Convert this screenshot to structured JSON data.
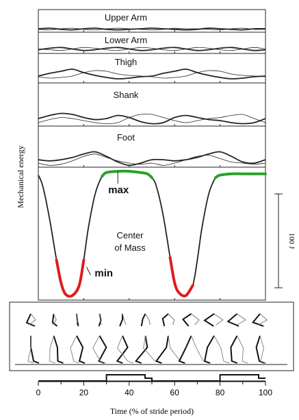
{
  "y_label": "Mechanical energy",
  "x_label": "Time (% of stride period)",
  "scale_bar_label": "100 J",
  "chart_data": {
    "type": "line",
    "xlabel": "Time (% of stride period)",
    "ylabel": "Mechanical energy",
    "xlim": [
      0,
      100
    ],
    "x_ticks": [
      0,
      20,
      40,
      60,
      80,
      100
    ],
    "grid": false,
    "panels": [
      {
        "name": "Upper Arm",
        "x": [
          0,
          5,
          10,
          15,
          20,
          25,
          30,
          35,
          40,
          45,
          50,
          55,
          60,
          65,
          70,
          75,
          80,
          85,
          90,
          95,
          100
        ],
        "series": [
          {
            "style": "thick",
            "values": [
              0.5,
              0.6,
              0.4,
              0.3,
              0.5,
              0.6,
              0.4,
              0.3,
              0.4,
              0.5,
              0.6,
              0.5,
              0.4,
              0.3,
              0.4,
              0.6,
              0.5,
              0.4,
              0.3,
              0.5,
              0.5
            ]
          },
          {
            "style": "thin",
            "values": [
              0.4,
              0.3,
              0.5,
              0.6,
              0.4,
              0.3,
              0.5,
              0.6,
              0.5,
              0.4,
              0.3,
              0.4,
              0.6,
              0.5,
              0.5,
              0.4,
              0.3,
              0.5,
              0.6,
              0.4,
              0.4
            ]
          }
        ]
      },
      {
        "name": "Lower Arm",
        "x": [
          0,
          5,
          10,
          15,
          20,
          25,
          30,
          35,
          40,
          45,
          50,
          55,
          60,
          65,
          70,
          75,
          80,
          85,
          90,
          95,
          100
        ],
        "series": [
          {
            "style": "thick",
            "values": [
              0.4,
              0.6,
              0.7,
              0.5,
              0.3,
              0.4,
              0.6,
              0.7,
              0.5,
              0.3,
              0.4,
              0.6,
              0.7,
              0.5,
              0.3,
              0.4,
              0.6,
              0.7,
              0.5,
              0.3,
              0.4
            ]
          },
          {
            "style": "thin",
            "values": [
              0.5,
              0.4,
              0.3,
              0.5,
              0.7,
              0.6,
              0.4,
              0.3,
              0.5,
              0.7,
              0.6,
              0.4,
              0.3,
              0.5,
              0.7,
              0.6,
              0.4,
              0.3,
              0.5,
              0.7,
              0.5
            ]
          }
        ]
      },
      {
        "name": "Thigh",
        "x": [
          0,
          5,
          10,
          15,
          20,
          25,
          30,
          35,
          40,
          45,
          50,
          55,
          60,
          65,
          70,
          75,
          80,
          85,
          90,
          95,
          100
        ],
        "series": [
          {
            "style": "thick",
            "values": [
              0.35,
              0.55,
              0.7,
              0.85,
              0.6,
              0.4,
              0.25,
              0.15,
              0.2,
              0.3,
              0.35,
              0.55,
              0.7,
              0.85,
              0.6,
              0.4,
              0.25,
              0.15,
              0.2,
              0.3,
              0.35
            ]
          },
          {
            "style": "thin",
            "values": [
              0.3,
              0.2,
              0.25,
              0.35,
              0.6,
              0.75,
              0.7,
              0.5,
              0.4,
              0.35,
              0.3,
              0.2,
              0.25,
              0.35,
              0.6,
              0.75,
              0.7,
              0.5,
              0.4,
              0.35,
              0.3
            ]
          }
        ]
      },
      {
        "name": "Shank",
        "x": [
          0,
          5,
          10,
          15,
          20,
          25,
          30,
          35,
          40,
          45,
          50,
          55,
          60,
          65,
          70,
          75,
          80,
          85,
          90,
          95,
          100
        ],
        "series": [
          {
            "style": "thick",
            "values": [
              0.3,
              0.45,
              0.55,
              0.5,
              0.35,
              0.25,
              0.3,
              0.45,
              0.35,
              0.15,
              0.05,
              0.1,
              0.35,
              0.45,
              0.35,
              0.25,
              0.2,
              0.1,
              0.05,
              0.1,
              0.3
            ]
          },
          {
            "style": "thin",
            "values": [
              0.1,
              0.25,
              0.35,
              0.3,
              0.2,
              0.1,
              0.05,
              0.1,
              0.35,
              0.5,
              0.5,
              0.35,
              0.2,
              0.1,
              0.2,
              0.3,
              0.35,
              0.45,
              0.5,
              0.3,
              0.1
            ]
          }
        ]
      },
      {
        "name": "Foot",
        "x": [
          0,
          5,
          10,
          15,
          20,
          25,
          30,
          35,
          40,
          45,
          50,
          55,
          60,
          65,
          70,
          75,
          80,
          85,
          90,
          95,
          100
        ],
        "series": [
          {
            "style": "thick",
            "values": [
              0.3,
              0.25,
              0.3,
              0.4,
              0.55,
              0.65,
              0.45,
              0.2,
              0.05,
              0.15,
              0.3,
              0.3,
              0.25,
              0.3,
              0.4,
              0.55,
              0.65,
              0.45,
              0.2,
              0.15,
              0.3
            ]
          },
          {
            "style": "thin",
            "values": [
              0.15,
              0.05,
              0.1,
              0.25,
              0.45,
              0.55,
              0.4,
              0.25,
              0.15,
              0.1,
              0.15,
              0.05,
              0.15,
              0.3,
              0.45,
              0.5,
              0.35,
              0.2,
              0.15,
              0.1,
              0.15
            ]
          }
        ]
      },
      {
        "name": "Center\nof Mass",
        "x": [
          0,
          2,
          5,
          8,
          10,
          12,
          15,
          18,
          20,
          22,
          25,
          28,
          30,
          35,
          40,
          45,
          48,
          50,
          52,
          55,
          58,
          60,
          62,
          65,
          68,
          70,
          72,
          75,
          78,
          80,
          85,
          90,
          95,
          100
        ],
        "series": [
          {
            "style": "thick",
            "values": [
              0.97,
              0.88,
              0.62,
              0.3,
              0.12,
              0.03,
              0.02,
              0.1,
              0.3,
              0.55,
              0.82,
              0.96,
              0.99,
              1.0,
              1.0,
              0.99,
              0.98,
              0.95,
              0.88,
              0.65,
              0.32,
              0.12,
              0.04,
              0.02,
              0.1,
              0.3,
              0.55,
              0.82,
              0.95,
              0.97,
              0.98,
              0.98,
              0.98,
              0.98
            ]
          }
        ],
        "highlights": [
          {
            "label": "max",
            "color": "#2aa02a",
            "x_range": [
              28,
              50
            ]
          },
          {
            "label": "",
            "color": "#2aa02a",
            "x_range": [
              78,
              100
            ]
          },
          {
            "label": "min",
            "color": "#dd1c1c",
            "x_range": [
              8,
              20
            ]
          },
          {
            "label": "",
            "color": "#dd1c1c",
            "x_range": [
              58,
              68
            ]
          }
        ],
        "scale_bar": {
          "label": "100 J",
          "length_j": 100
        }
      }
    ],
    "stance_phases": [
      {
        "x_start": 0,
        "x_end": 30,
        "level": "low"
      },
      {
        "x_start": 30,
        "x_end": 47,
        "level": "high"
      },
      {
        "x_start": 47,
        "x_end": 50,
        "level": "mid"
      },
      {
        "x_start": 50,
        "x_end": 80,
        "level": "low"
      },
      {
        "x_start": 80,
        "x_end": 97,
        "level": "high"
      },
      {
        "x_start": 97,
        "x_end": 100,
        "level": "mid"
      }
    ],
    "stick_figure_frames": 11
  }
}
